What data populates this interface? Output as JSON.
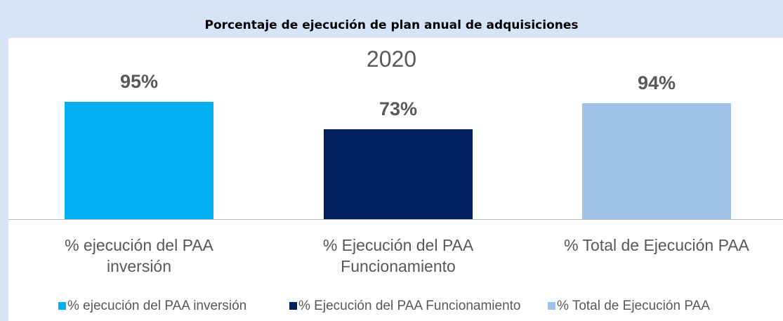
{
  "chart_data": {
    "type": "bar",
    "title": "Porcentaje de ejecución de plan anual de adquisiciones",
    "subtitle": "2020",
    "categories": [
      "% ejecución del PAA inversión",
      "% Ejecución del PAA Funcionamiento",
      "% Total de Ejecución PAA"
    ],
    "values": [
      95,
      73,
      94
    ],
    "value_labels": [
      "95%",
      "73%",
      "94%"
    ],
    "colors": [
      "#00b0f0",
      "#002060",
      "#9dc3e6"
    ],
    "legend": "bottom"
  }
}
